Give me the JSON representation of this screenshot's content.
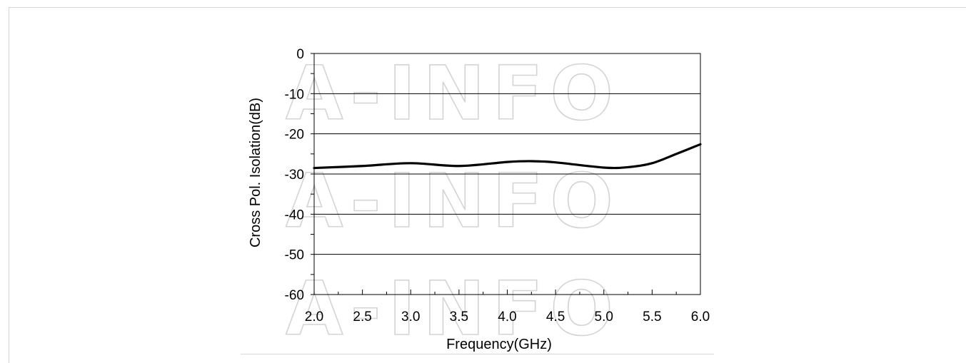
{
  "chart_data": {
    "type": "line",
    "xlabel": "Frequency(GHz)",
    "ylabel": "Cross Pol. Isolation(dB)",
    "xlim": [
      2.0,
      6.0
    ],
    "ylim": [
      -60,
      0
    ],
    "x_ticks": [
      "2.0",
      "2.5",
      "3.0",
      "3.5",
      "4.0",
      "4.5",
      "5.0",
      "5.5",
      "6.0"
    ],
    "y_ticks": [
      "0",
      "-10",
      "-20",
      "-30",
      "-40",
      "-50",
      "-60"
    ],
    "grid": "horizontal",
    "watermark": "A-INFO",
    "series": [
      {
        "x": [
          2.0,
          2.5,
          3.0,
          3.5,
          4.0,
          4.25,
          4.5,
          5.0,
          5.25,
          5.5,
          5.75,
          6.0
        ],
        "y": [
          -28.5,
          -28.0,
          -27.3,
          -28.0,
          -27.0,
          -26.8,
          -27.1,
          -28.4,
          -28.3,
          -27.3,
          -25.0,
          -22.6
        ],
        "color": "#000000"
      }
    ]
  }
}
